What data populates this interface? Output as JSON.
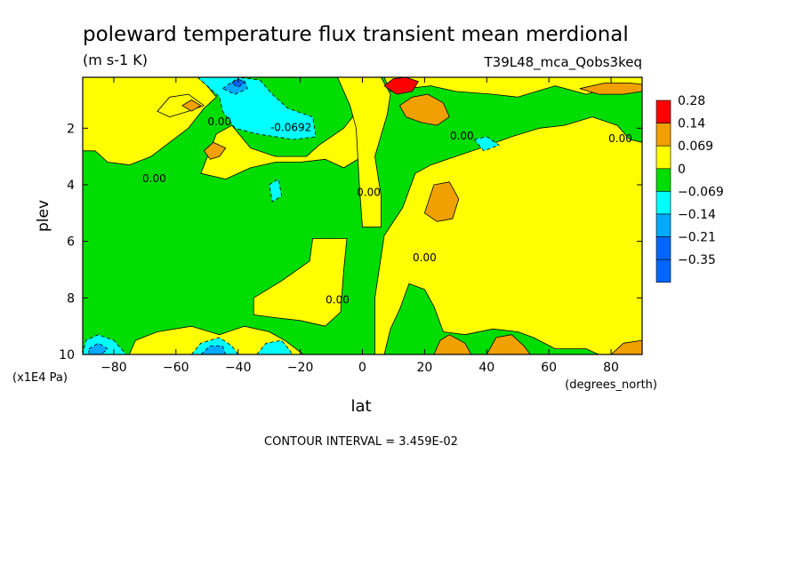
{
  "chart_data": {
    "type": "heatmap",
    "title": "poleward temperature flux transient mean merdional",
    "units": "(m s-1 K)",
    "dataset": "T39L48_mca_Qobs3keq",
    "xlabel": "lat",
    "x_units": "(degrees_north)",
    "ylabel": "plev",
    "y_units": "(x1E4 Pa)",
    "xlim": [
      -90,
      90
    ],
    "ylim": [
      10,
      0.2
    ],
    "x_ticks": [
      -80,
      -60,
      -40,
      -20,
      0,
      20,
      40,
      60,
      80
    ],
    "x_tick_labels": [
      "−80",
      "−60",
      "−40",
      "−20",
      "0",
      "20",
      "40",
      "60",
      "80"
    ],
    "y_ticks": [
      2,
      4,
      6,
      8,
      10
    ],
    "y_tick_labels": [
      "2",
      "4",
      "6",
      "8",
      "10"
    ],
    "contour_interval_text": "CONTOUR INTERVAL = 3.459E-02",
    "contour_labels": [
      {
        "text": "0.00",
        "lat": -46,
        "plev": 1.9
      },
      {
        "text": "-0.0692",
        "lat": -23,
        "plev": 2.1
      },
      {
        "text": "0.00",
        "lat": -67,
        "plev": 3.9
      },
      {
        "text": "0.00",
        "lat": 2,
        "plev": 4.4
      },
      {
        "text": "0.00",
        "lat": 32,
        "plev": 2.4
      },
      {
        "text": "0.00",
        "lat": 83,
        "plev": 2.5
      },
      {
        "text": "0.00",
        "lat": 20,
        "plev": 6.7
      },
      {
        "text": "0.00",
        "lat": -8,
        "plev": 8.2
      }
    ],
    "colorbar": {
      "levels": [
        {
          "label": "0.28",
          "color": "#ff0000"
        },
        {
          "label": "0.14",
          "color": "#f0a000"
        },
        {
          "label": "0.069",
          "color": "#ffff00"
        },
        {
          "label": "0",
          "color": "#00dd00"
        },
        {
          "label": "−0.069",
          "color": "#00ffff"
        },
        {
          "label": "−0.14",
          "color": "#00aaff"
        },
        {
          "label": "−0.21",
          "color": "#0066ff"
        },
        {
          "label": "−0.35",
          "color": ""
        }
      ]
    },
    "colors": {
      "neg1": "#00dd00",
      "pos1": "#ffff00",
      "pos2": "#f0a000",
      "pos3": "#ff0000",
      "neg2": "#00ffff",
      "neg3": "#00aaff",
      "neg4": "#0066ff"
    },
    "regions": [
      {
        "level": "pos1",
        "points": [
          [
            -90,
            2.8
          ],
          [
            -86,
            2.8
          ],
          [
            -82,
            3.2
          ],
          [
            -75,
            3.3
          ],
          [
            -68,
            3.0
          ],
          [
            -62,
            2.5
          ],
          [
            -56,
            2.0
          ],
          [
            -51,
            1.3
          ],
          [
            -47,
            0.9
          ],
          [
            -50,
            0.5
          ],
          [
            -53,
            0.2
          ],
          [
            -90,
            0.2
          ]
        ]
      },
      {
        "level": "pos1",
        "points": [
          [
            -66,
            1.4
          ],
          [
            -62,
            0.9
          ],
          [
            -56,
            0.8
          ],
          [
            -51,
            1.2
          ],
          [
            -56,
            1.4
          ],
          [
            -62,
            1.6
          ]
        ]
      },
      {
        "level": "pos1",
        "points": [
          [
            -52,
            3.6
          ],
          [
            -47,
            2.2
          ],
          [
            -42,
            1.9
          ],
          [
            -36,
            2.7
          ],
          [
            -28,
            3.0
          ],
          [
            -18,
            3.0
          ],
          [
            -14,
            2.6
          ],
          [
            -6,
            2.0
          ],
          [
            -1,
            1.3
          ],
          [
            3,
            0.8
          ],
          [
            2,
            2.0
          ],
          [
            0,
            3.0
          ],
          [
            -6,
            3.4
          ],
          [
            -12,
            3.1
          ],
          [
            -20,
            3.2
          ],
          [
            -28,
            3.2
          ],
          [
            -36,
            3.4
          ],
          [
            -44,
            3.8
          ]
        ]
      },
      {
        "level": "pos1",
        "points": [
          [
            -8,
            0.2
          ],
          [
            6,
            0.2
          ],
          [
            9,
            0.8
          ],
          [
            8,
            1.5
          ],
          [
            4,
            3.0
          ],
          [
            6,
            4.4
          ],
          [
            6,
            5.5
          ],
          [
            0,
            5.5
          ],
          [
            -1,
            4.0
          ],
          [
            -2,
            2.0
          ],
          [
            -4,
            1.2
          ]
        ]
      },
      {
        "level": "pos1",
        "points": [
          [
            -35,
            8.0
          ],
          [
            -26,
            7.4
          ],
          [
            -17,
            6.7
          ],
          [
            -16,
            5.9
          ],
          [
            -11,
            5.9
          ],
          [
            -5,
            5.9
          ],
          [
            -6,
            7.0
          ],
          [
            -7,
            8.5
          ],
          [
            -12,
            9.0
          ],
          [
            -20,
            8.8
          ],
          [
            -28,
            8.7
          ],
          [
            -35,
            8.6
          ]
        ]
      },
      {
        "level": "pos1",
        "points": [
          [
            4,
            10
          ],
          [
            4,
            8.0
          ],
          [
            7,
            5.8
          ],
          [
            13,
            4.8
          ],
          [
            17,
            3.6
          ],
          [
            22,
            3.3
          ],
          [
            30,
            3.0
          ],
          [
            38,
            2.7
          ],
          [
            48,
            2.3
          ],
          [
            57,
            2.0
          ],
          [
            65,
            1.9
          ],
          [
            74,
            1.6
          ],
          [
            82,
            1.9
          ],
          [
            86,
            2.4
          ],
          [
            90,
            2.5
          ],
          [
            90,
            10
          ],
          [
            76,
            10
          ],
          [
            72,
            9.8
          ],
          [
            62,
            9.8
          ],
          [
            55,
            9.4
          ],
          [
            50,
            9.2
          ],
          [
            42,
            9.1
          ],
          [
            33,
            9.3
          ],
          [
            26,
            9.2
          ],
          [
            23,
            8.3
          ],
          [
            20,
            7.7
          ],
          [
            15,
            7.5
          ],
          [
            12,
            8.4
          ],
          [
            9,
            9.1
          ],
          [
            7,
            10
          ]
        ]
      },
      {
        "level": "pos1",
        "points": [
          [
            7,
            0.2
          ],
          [
            90,
            0.2
          ],
          [
            90,
            0.6
          ],
          [
            82,
            0.5
          ],
          [
            72,
            0.8
          ],
          [
            62,
            0.5
          ],
          [
            50,
            0.9
          ],
          [
            42,
            0.8
          ],
          [
            30,
            0.7
          ],
          [
            22,
            0.5
          ],
          [
            14,
            0.6
          ],
          [
            9,
            0.7
          ]
        ]
      },
      {
        "level": "pos1",
        "points": [
          [
            -75,
            10
          ],
          [
            -73,
            9.5
          ],
          [
            -66,
            9.2
          ],
          [
            -55,
            9.0
          ],
          [
            -46,
            9.3
          ],
          [
            -38,
            9.0
          ],
          [
            -30,
            9.2
          ],
          [
            -25,
            9.5
          ],
          [
            -19,
            10
          ]
        ]
      },
      {
        "level": "pos2",
        "points": [
          [
            -51,
            2.8
          ],
          [
            -48,
            2.5
          ],
          [
            -44,
            2.7
          ],
          [
            -46,
            3.0
          ],
          [
            -49,
            3.1
          ]
        ]
      },
      {
        "level": "pos2",
        "points": [
          [
            12,
            1.2
          ],
          [
            16,
            0.9
          ],
          [
            21,
            0.8
          ],
          [
            26,
            1.1
          ],
          [
            28,
            1.6
          ],
          [
            24,
            1.9
          ],
          [
            19,
            1.8
          ],
          [
            14,
            1.6
          ]
        ]
      },
      {
        "level": "pos2",
        "points": [
          [
            20,
            5.0
          ],
          [
            23,
            4.0
          ],
          [
            28,
            3.9
          ],
          [
            31,
            4.5
          ],
          [
            29,
            5.2
          ],
          [
            24,
            5.3
          ]
        ]
      },
      {
        "level": "pos2",
        "points": [
          [
            23,
            10
          ],
          [
            25,
            9.5
          ],
          [
            28,
            9.3
          ],
          [
            33,
            9.6
          ],
          [
            35,
            10
          ]
        ]
      },
      {
        "level": "pos2",
        "points": [
          [
            40,
            10
          ],
          [
            43,
            9.4
          ],
          [
            48,
            9.3
          ],
          [
            52,
            9.7
          ],
          [
            54,
            10
          ]
        ]
      },
      {
        "level": "pos2",
        "points": [
          [
            80,
            10
          ],
          [
            84,
            9.6
          ],
          [
            90,
            9.5
          ],
          [
            90,
            10
          ]
        ]
      },
      {
        "level": "pos2",
        "points": [
          [
            70,
            0.6
          ],
          [
            78,
            0.4
          ],
          [
            86,
            0.4
          ],
          [
            90,
            0.45
          ],
          [
            90,
            0.7
          ],
          [
            84,
            0.8
          ],
          [
            76,
            0.8
          ]
        ]
      },
      {
        "level": "pos2",
        "points": [
          [
            -58,
            1.2
          ],
          [
            -55,
            1.0
          ],
          [
            -52,
            1.2
          ],
          [
            -55,
            1.4
          ]
        ]
      },
      {
        "level": "pos3",
        "points": [
          [
            7,
            0.5
          ],
          [
            10,
            0.25
          ],
          [
            14,
            0.2
          ],
          [
            18,
            0.35
          ],
          [
            16,
            0.7
          ],
          [
            11,
            0.8
          ]
        ]
      },
      {
        "level": "neg2",
        "points": [
          [
            -53,
            0.2
          ],
          [
            -47,
            0.2
          ],
          [
            -40,
            0.2
          ],
          [
            -33,
            0.3
          ],
          [
            -29,
            0.8
          ],
          [
            -24,
            1.3
          ],
          [
            -16,
            1.6
          ],
          [
            -15,
            2.3
          ],
          [
            -22,
            2.4
          ],
          [
            -34,
            2.2
          ],
          [
            -41,
            2.0
          ],
          [
            -45,
            1.4
          ],
          [
            -46,
            0.9
          ],
          [
            -50,
            0.5
          ]
        ]
      },
      {
        "level": "neg2",
        "points": [
          [
            -30,
            4.0
          ],
          [
            -27,
            3.8
          ],
          [
            -26,
            4.4
          ],
          [
            -29,
            4.6
          ]
        ]
      },
      {
        "level": "neg2",
        "points": [
          [
            36,
            2.4
          ],
          [
            40,
            2.3
          ],
          [
            44,
            2.6
          ],
          [
            39,
            2.8
          ]
        ]
      },
      {
        "level": "neg2",
        "points": [
          [
            -90,
            10
          ],
          [
            -89,
            9.5
          ],
          [
            -85,
            9.3
          ],
          [
            -80,
            9.5
          ],
          [
            -76,
            10
          ]
        ]
      },
      {
        "level": "neg2",
        "points": [
          [
            -55,
            10
          ],
          [
            -52,
            9.6
          ],
          [
            -46,
            9.4
          ],
          [
            -42,
            9.7
          ],
          [
            -40,
            10
          ]
        ]
      },
      {
        "level": "neg2",
        "points": [
          [
            -34,
            10
          ],
          [
            -31,
            9.6
          ],
          [
            -26,
            9.5
          ],
          [
            -23,
            9.9
          ],
          [
            -23,
            10
          ]
        ]
      },
      {
        "level": "neg3",
        "points": [
          [
            -45,
            0.6
          ],
          [
            -41,
            0.3
          ],
          [
            -38,
            0.3
          ],
          [
            -37,
            0.6
          ],
          [
            -41,
            0.8
          ]
        ]
      },
      {
        "level": "neg3",
        "points": [
          [
            -88,
            9.8
          ],
          [
            -85,
            9.6
          ],
          [
            -82,
            9.8
          ],
          [
            -84,
            10
          ],
          [
            -88,
            10
          ]
        ]
      },
      {
        "level": "neg3",
        "points": [
          [
            -52,
            10
          ],
          [
            -49,
            9.7
          ],
          [
            -45,
            9.7
          ],
          [
            -44,
            10
          ]
        ]
      },
      {
        "level": "neg4",
        "points": [
          [
            -42,
            0.4
          ],
          [
            -40,
            0.25
          ],
          [
            -38,
            0.4
          ],
          [
            -40,
            0.55
          ]
        ]
      }
    ]
  }
}
